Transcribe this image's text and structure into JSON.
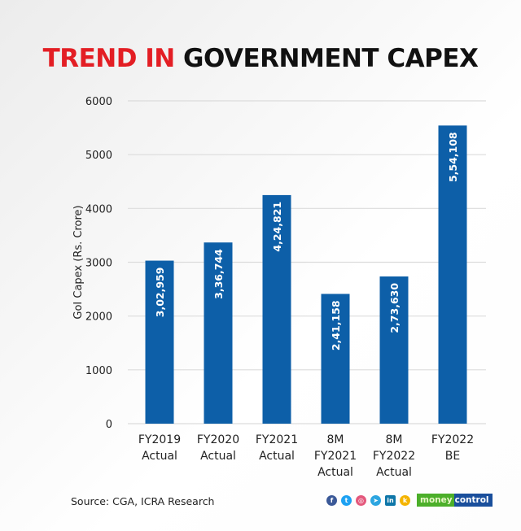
{
  "title": {
    "part1": "TREND IN",
    "part2": "GOVERNMENT CAPEX"
  },
  "colors": {
    "bar": "#0d5fa8",
    "title_red": "#e31e24",
    "grid": "#dcdcdc"
  },
  "chart_data": {
    "type": "bar",
    "title": "TREND IN GOVERNMENT CAPEX",
    "xlabel": "",
    "ylabel": "GoI Capex (Rs. Crore)",
    "ylim": [
      0,
      6000
    ],
    "yticks": [
      0,
      1000,
      2000,
      3000,
      4000,
      5000,
      6000
    ],
    "grid": true,
    "categories": [
      [
        "FY2019",
        "Actual"
      ],
      [
        "FY2020",
        "Actual"
      ],
      [
        "FY2021",
        "Actual"
      ],
      [
        "8M",
        "FY2021",
        "Actual"
      ],
      [
        "8M",
        "FY2022",
        "Actual"
      ],
      [
        "FY2022",
        "BE"
      ]
    ],
    "values": [
      3029.59,
      3367.44,
      4248.21,
      2411.58,
      2736.3,
      5541.08
    ],
    "data_labels": [
      "3,02,959",
      "3,36,744",
      "4,24,821",
      "2,41,158",
      "2,73,630",
      "5,54,108"
    ]
  },
  "footer": {
    "source": "Source: CGA, ICRA Research",
    "social_icons": [
      {
        "name": "facebook-icon",
        "glyph": "f",
        "color": "#3b5998"
      },
      {
        "name": "twitter-icon",
        "glyph": "t",
        "color": "#1da1f2"
      },
      {
        "name": "instagram-icon",
        "glyph": "◎",
        "color": "#e4587c"
      },
      {
        "name": "telegram-icon",
        "glyph": "➤",
        "color": "#2ca5e0"
      },
      {
        "name": "linkedin-icon",
        "glyph": "in",
        "color": "#0e76a8"
      },
      {
        "name": "koo-icon",
        "glyph": "k",
        "color": "#f4b400"
      }
    ],
    "logo": {
      "part1": "money",
      "part2": "control"
    }
  }
}
